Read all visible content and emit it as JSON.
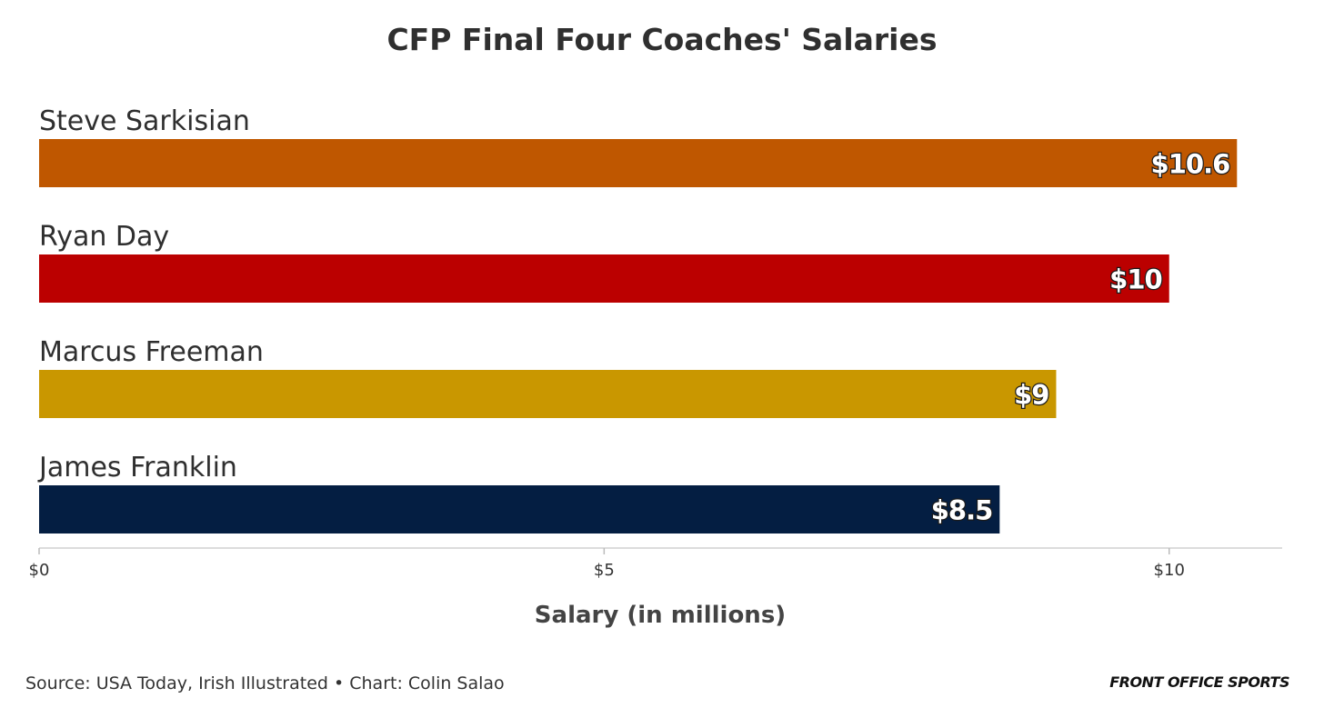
{
  "chart_data": {
    "type": "bar",
    "orientation": "horizontal",
    "title": "CFP Final Four Coaches' Salaries",
    "xlabel": "Salary (in millions)",
    "ylabel": "",
    "categories": [
      "Steve Sarkisian",
      "Ryan Day",
      "Marcus Freeman",
      "James Franklin"
    ],
    "values": [
      10.6,
      10,
      9,
      8.5
    ],
    "data_labels": [
      "$10.6",
      "$10",
      "$9",
      "$8.5"
    ],
    "colors": [
      "#bf5700",
      "#bb0000",
      "#c99700",
      "#041e42"
    ],
    "xlim": [
      0,
      11
    ],
    "xticks": [
      0,
      5,
      10
    ],
    "xtick_labels": [
      "$0",
      "$5",
      "$10"
    ],
    "grid": false,
    "legend": "none"
  },
  "footer": {
    "source": "Source: USA Today, Irish Illustrated • Chart: Colin Salao",
    "brand": "FRONT OFFICE SPORTS"
  }
}
